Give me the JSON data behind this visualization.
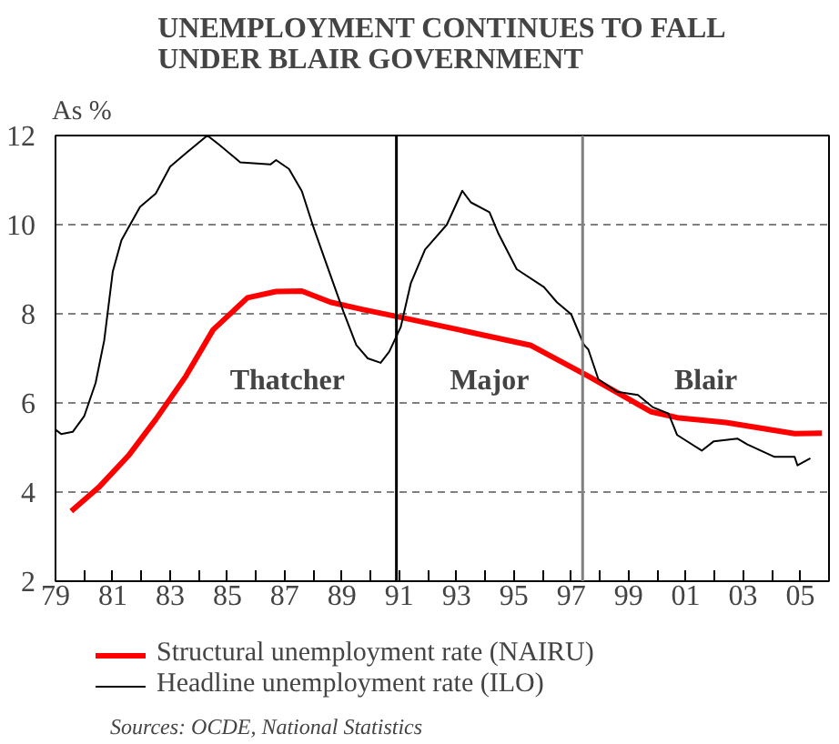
{
  "chart_data": {
    "type": "line",
    "title": "UNEMPLOYMENT CONTINUES TO FALL\nUNDER BLAIR GOVERNMENT",
    "ylabel": "As %",
    "xlim": [
      1979,
      2006
    ],
    "ylim": [
      2,
      12
    ],
    "yticks": [
      2,
      4,
      6,
      8,
      10,
      12
    ],
    "xticks": [
      {
        "value": 1979,
        "label": "79"
      },
      {
        "value": 1980,
        "label": null
      },
      {
        "value": 1981,
        "label": "81"
      },
      {
        "value": 1982,
        "label": null
      },
      {
        "value": 1983,
        "label": "83"
      },
      {
        "value": 1984,
        "label": null
      },
      {
        "value": 1985,
        "label": "85"
      },
      {
        "value": 1986,
        "label": null
      },
      {
        "value": 1987,
        "label": "87"
      },
      {
        "value": 1988,
        "label": null
      },
      {
        "value": 1989,
        "label": "89"
      },
      {
        "value": 1990,
        "label": null
      },
      {
        "value": 1991,
        "label": "91"
      },
      {
        "value": 1992,
        "label": null
      },
      {
        "value": 1993,
        "label": "93"
      },
      {
        "value": 1994,
        "label": null
      },
      {
        "value": 1995,
        "label": "95"
      },
      {
        "value": 1996,
        "label": null
      },
      {
        "value": 1997,
        "label": "97"
      },
      {
        "value": 1998,
        "label": null
      },
      {
        "value": 1999,
        "label": "99"
      },
      {
        "value": 2000,
        "label": null
      },
      {
        "value": 2001,
        "label": "01"
      },
      {
        "value": 2002,
        "label": null
      },
      {
        "value": 2003,
        "label": "03"
      },
      {
        "value": 2004,
        "label": null
      },
      {
        "value": 2005,
        "label": "05"
      }
    ],
    "grid": "y",
    "legend": "bottom",
    "line_style": "solid",
    "marker": "none",
    "series": [
      {
        "name": "Structural unemployment rate (NAIRU)",
        "color": "#ff0000",
        "x": [
          1979.55,
          1980.5,
          1981.55,
          1982.5,
          1983.55,
          1984.5,
          1985.7,
          1986.7,
          1987.6,
          1988.6,
          1989.7,
          1991.05,
          1993.1,
          1995.6,
          1997.6,
          1999.8,
          2000.7,
          2002.4,
          2004.8,
          2005.75
        ],
        "values": [
          3.57,
          4.1,
          4.82,
          5.63,
          6.6,
          7.64,
          8.36,
          8.5,
          8.51,
          8.26,
          8.1,
          7.92,
          7.64,
          7.29,
          6.6,
          5.8,
          5.67,
          5.56,
          5.31,
          5.32
        ]
      },
      {
        "name": "Headline unemployment rate (ILO)",
        "color": "#000000",
        "x": [
          1979.0,
          1979.2,
          1979.6,
          1980.0,
          1980.4,
          1980.7,
          1981.0,
          1981.3,
          1981.95,
          1982.5,
          1983.0,
          1983.55,
          1984.3,
          1984.7,
          1985.45,
          1986.5,
          1986.7,
          1987.15,
          1987.6,
          1988.0,
          1988.55,
          1989.05,
          1989.5,
          1989.9,
          1990.35,
          1990.65,
          1991.05,
          1991.4,
          1991.9,
          1992.66,
          1993.2,
          1993.5,
          1994.15,
          1994.46,
          1995.1,
          1996.05,
          1996.5,
          1997.0,
          1997.45,
          1997.6,
          1997.95,
          1998.6,
          1999.33,
          1999.86,
          2000.4,
          2000.7,
          2001.56,
          2001.98,
          2002.8,
          2003.15,
          2004.1,
          2004.8,
          2004.9,
          2005.35
        ],
        "values": [
          5.4,
          5.3,
          5.35,
          5.7,
          6.45,
          7.4,
          8.95,
          9.65,
          10.4,
          10.7,
          11.3,
          11.6,
          12.0,
          11.8,
          11.4,
          11.35,
          11.45,
          11.25,
          10.75,
          9.95,
          8.95,
          8.05,
          7.3,
          7.0,
          6.9,
          7.15,
          7.7,
          8.68,
          9.44,
          10.0,
          10.76,
          10.5,
          10.28,
          9.8,
          9.0,
          8.6,
          8.26,
          7.99,
          7.3,
          7.2,
          6.53,
          6.25,
          6.18,
          5.9,
          5.76,
          5.28,
          4.93,
          5.14,
          5.2,
          5.07,
          4.79,
          4.79,
          4.6,
          4.76
        ]
      }
    ],
    "ref_lines": [
      {
        "axis": "x",
        "value": 1990.9,
        "color": "#000000"
      },
      {
        "axis": "x",
        "value": 1997.4,
        "color": "#808080"
      }
    ],
    "annotations": [
      "Thatcher",
      "Major",
      "Blair",
      "Sources: OCDE, National Statistics"
    ]
  }
}
